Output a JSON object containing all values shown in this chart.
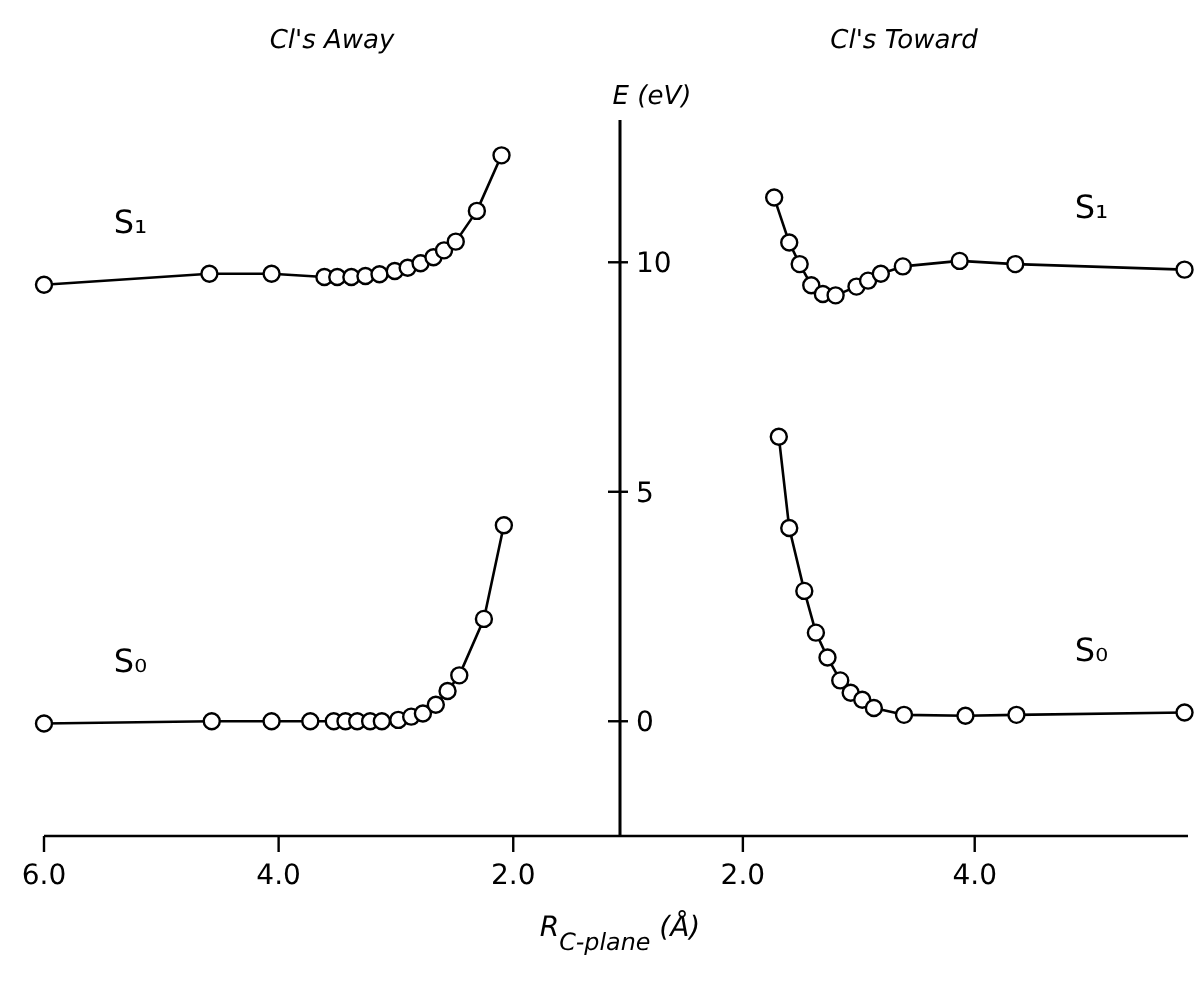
{
  "chart_data": [
    {
      "type": "line",
      "title": "Cl's Away",
      "xlim": [
        6.0,
        1.09
      ],
      "ylim": [
        -2.5,
        13.1
      ],
      "xticks": [
        {
          "value": 6,
          "label": "6.0"
        },
        {
          "value": 4,
          "label": "4.0"
        },
        {
          "value": 2,
          "label": "2.0"
        }
      ],
      "tick_labels": "x",
      "marker": "circle",
      "line_style": "solid",
      "series": [
        {
          "name": "S₁",
          "color": "#000000",
          "x": [
            6.0,
            4.59,
            4.06,
            3.61,
            3.5,
            3.38,
            3.26,
            3.14,
            3.01,
            2.9,
            2.79,
            2.68,
            2.59,
            2.49,
            2.31,
            2.1
          ],
          "values": [
            9.51,
            9.75,
            9.75,
            9.68,
            9.68,
            9.68,
            9.7,
            9.74,
            9.81,
            9.88,
            9.98,
            10.11,
            10.26,
            10.45,
            11.12,
            12.33
          ]
        },
        {
          "name": "S₀",
          "color": "#000000",
          "x": [
            6.0,
            4.57,
            4.06,
            3.73,
            3.53,
            3.43,
            3.33,
            3.22,
            3.12,
            2.98,
            2.87,
            2.77,
            2.66,
            2.56,
            2.46,
            2.25,
            2.08
          ],
          "values": [
            -0.05,
            0,
            0,
            0,
            0,
            0,
            0,
            0,
            0,
            0.03,
            0.1,
            0.17,
            0.36,
            0.66,
            1.0,
            2.23,
            4.27
          ]
        }
      ]
    },
    {
      "type": "line",
      "title": "Cl's Toward",
      "ylabel": "E (eV)",
      "xlabel": "R$_{C-plane}$ (Å)",
      "xlim": [
        0.94,
        5.84
      ],
      "ylim": [
        -2.5,
        13.1
      ],
      "yticks": [
        0,
        5,
        10
      ],
      "xticks": [
        {
          "value": 2,
          "label": "2.0"
        },
        {
          "value": 4,
          "label": "4.0"
        }
      ],
      "marker": "circle",
      "line_style": "solid",
      "series": [
        {
          "name": "S₁",
          "color": "#000000",
          "x": [
            2.27,
            2.4,
            2.49,
            2.59,
            2.69,
            2.8,
            2.98,
            3.08,
            3.19,
            3.38,
            3.87,
            4.35,
            5.81
          ],
          "values": [
            11.41,
            10.43,
            9.96,
            9.5,
            9.31,
            9.28,
            9.47,
            9.6,
            9.75,
            9.91,
            10.03,
            9.96,
            9.84
          ]
        },
        {
          "name": "S₀",
          "color": "#000000",
          "x": [
            2.31,
            2.4,
            2.53,
            2.63,
            2.73,
            2.84,
            2.93,
            3.03,
            3.13,
            3.39,
            3.92,
            4.36,
            5.81
          ],
          "values": [
            6.2,
            4.21,
            2.84,
            1.93,
            1.39,
            0.89,
            0.62,
            0.47,
            0.29,
            0.14,
            0.12,
            0.14,
            0.19
          ]
        }
      ]
    }
  ]
}
